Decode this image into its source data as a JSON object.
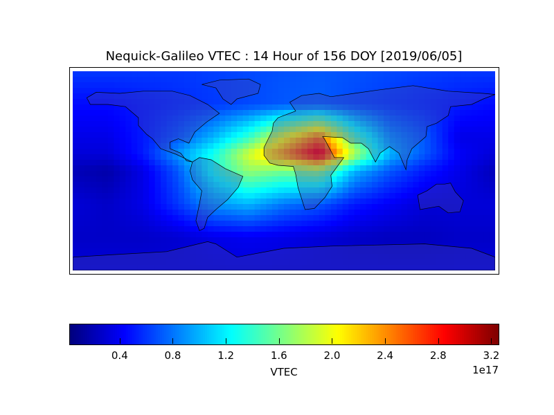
{
  "title": "Nequick-Galileo VTEC : 14 Hour of 156 DOY [2019/06/05]",
  "chart_data": {
    "type": "heatmap",
    "title": "Nequick-Galileo VTEC : 14 Hour of 156 DOY [2019/06/05]",
    "colormap": "jet",
    "projection": "cylindrical world map",
    "colorbar": {
      "label": "VTEC",
      "multiplier": "1e17",
      "ticks": [
        "0.4",
        "0.8",
        "1.2",
        "1.6",
        "2.0",
        "2.4",
        "2.8",
        "3.2"
      ],
      "range": [
        0.02,
        3.25
      ],
      "orientation": "horizontal",
      "placement": "bottom"
    },
    "lon": [
      -180,
      -150,
      -120,
      -90,
      -60,
      -30,
      0,
      30,
      60,
      90,
      120,
      150,
      180
    ],
    "lat": [
      90,
      60,
      30,
      15,
      0,
      -30,
      -60,
      -90
    ],
    "values_1e17": [
      [
        0.6,
        0.6,
        0.6,
        0.6,
        0.62,
        0.65,
        0.68,
        0.7,
        0.68,
        0.65,
        0.62,
        0.6,
        0.6
      ],
      [
        0.45,
        0.45,
        0.5,
        0.55,
        0.6,
        0.65,
        0.7,
        0.72,
        0.65,
        0.6,
        0.55,
        0.5,
        0.45
      ],
      [
        0.35,
        0.35,
        0.5,
        0.7,
        1.0,
        1.4,
        2.0,
        2.5,
        1.5,
        0.9,
        0.7,
        0.35,
        0.35
      ],
      [
        0.3,
        0.3,
        0.5,
        0.9,
        1.3,
        1.9,
        2.4,
        3.0,
        1.8,
        1.0,
        0.7,
        0.4,
        0.3
      ],
      [
        0.2,
        0.15,
        0.35,
        0.7,
        1.3,
        1.7,
        1.6,
        1.7,
        1.0,
        0.7,
        0.5,
        0.35,
        0.2
      ],
      [
        0.3,
        0.25,
        0.35,
        0.6,
        0.9,
        1.0,
        0.8,
        0.7,
        0.5,
        0.4,
        0.3,
        0.3,
        0.3
      ],
      [
        0.25,
        0.25,
        0.25,
        0.28,
        0.35,
        0.38,
        0.35,
        0.3,
        0.25,
        0.22,
        0.22,
        0.25,
        0.25
      ],
      [
        0.3,
        0.3,
        0.3,
        0.3,
        0.3,
        0.3,
        0.3,
        0.3,
        0.3,
        0.3,
        0.3,
        0.3,
        0.3
      ]
    ]
  }
}
